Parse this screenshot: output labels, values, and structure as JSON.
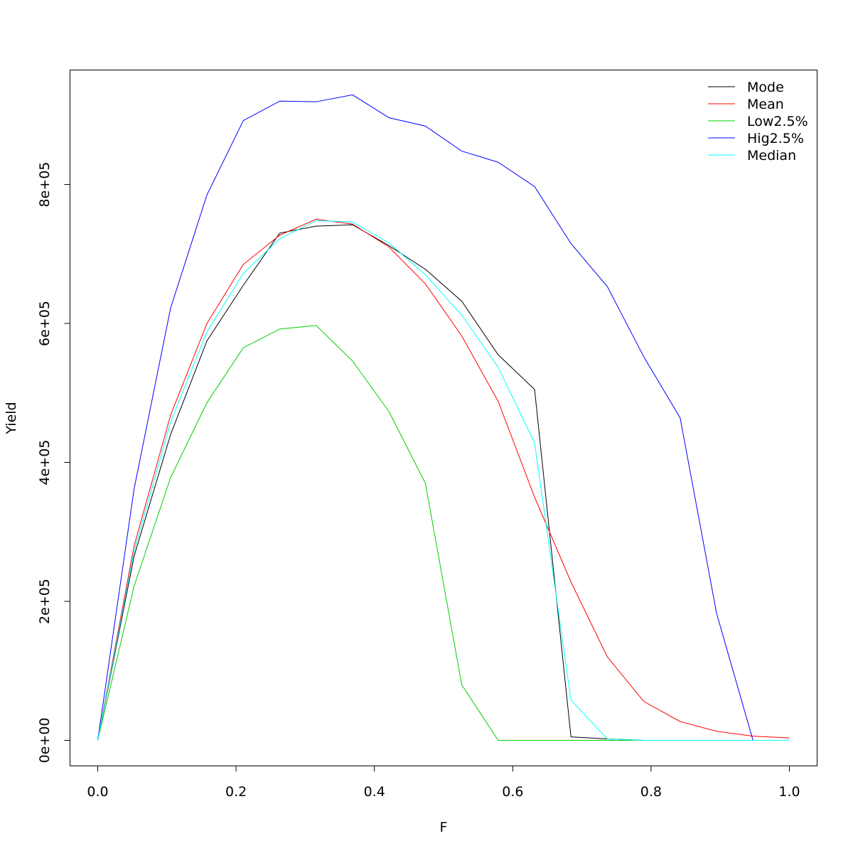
{
  "chart_data": {
    "type": "line",
    "title": "",
    "xlabel": "F",
    "ylabel": "Yield",
    "xlim": [
      0,
      1
    ],
    "ylim": [
      0,
      935000
    ],
    "x_ticks": [
      0,
      0.2,
      0.4,
      0.6,
      0.8,
      1.0
    ],
    "x_tick_labels": [
      "0.0",
      "0.2",
      "0.4",
      "0.6",
      "0.8",
      "1.0"
    ],
    "y_ticks": [
      0,
      200000,
      400000,
      600000,
      800000
    ],
    "y_tick_labels": [
      "0e+00",
      "2e+05",
      "4e+05",
      "6e+05",
      "8e+05"
    ],
    "grid": false,
    "legend_position": "top-right",
    "x": [
      0,
      0.0526,
      0.1053,
      0.1579,
      0.2105,
      0.2632,
      0.3158,
      0.3684,
      0.4211,
      0.4737,
      0.5263,
      0.5789,
      0.6316,
      0.6842,
      0.7368,
      0.7895,
      0.8421,
      0.8947,
      0.9474,
      1.0
    ],
    "series": [
      {
        "name": "Mode",
        "color": "#000000",
        "values": [
          0,
          265000,
          440000,
          575000,
          655000,
          730000,
          740000,
          742000,
          712000,
          678000,
          632000,
          555000,
          505000,
          5000,
          2000,
          0,
          0,
          0,
          0,
          0
        ]
      },
      {
        "name": "Mean",
        "color": "#ff0000",
        "values": [
          0,
          280000,
          468000,
          600000,
          685000,
          727000,
          750000,
          743000,
          710000,
          657000,
          582000,
          488000,
          350000,
          228000,
          120000,
          56000,
          27000,
          13000,
          6000,
          3500
        ]
      },
      {
        "name": "Low2.5%",
        "color": "#00cd00",
        "values": [
          0,
          222000,
          378000,
          486000,
          565000,
          592000,
          597000,
          546000,
          473000,
          370000,
          80000,
          0,
          0,
          0,
          0,
          0,
          0,
          0,
          0,
          0
        ]
      },
      {
        "name": "Hig2.5%",
        "color": "#0000ff",
        "values": [
          0,
          362000,
          622000,
          785000,
          892000,
          920000,
          919000,
          929000,
          896000,
          884000,
          848000,
          832000,
          797000,
          715000,
          653000,
          552000,
          464000,
          183000,
          0,
          0
        ]
      },
      {
        "name": "Median",
        "color": "#00ffff",
        "values": [
          0,
          272000,
          458000,
          588000,
          672000,
          722000,
          748000,
          746000,
          716000,
          670000,
          612000,
          537000,
          428000,
          58000,
          2000,
          0,
          0,
          0,
          0,
          0
        ]
      }
    ]
  }
}
